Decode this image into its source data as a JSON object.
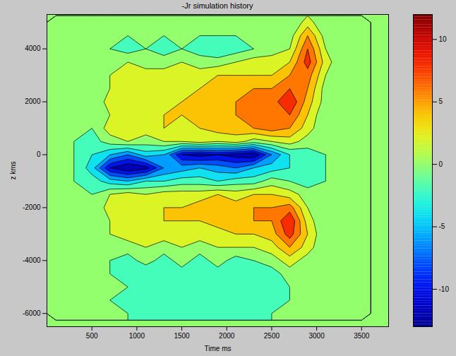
{
  "chart_data": {
    "type": "contour",
    "title": "-Jr simulation history",
    "x_label": "Time ms",
    "y_label": "z kms",
    "x": [
      100,
      300,
      500,
      700,
      900,
      1100,
      1300,
      1500,
      1700,
      1900,
      2100,
      2300,
      2500,
      2700,
      2900,
      3100,
      3300,
      3500
    ],
    "y": [
      5000,
      4500,
      4000,
      3500,
      3000,
      2500,
      2000,
      1500,
      1000,
      500,
      0,
      -500,
      -1000,
      -1500,
      -2000,
      -2500,
      -3000,
      -3500,
      -4000,
      -4500,
      -5000,
      -5500,
      -6000
    ],
    "values": [
      [
        0,
        0,
        0,
        0,
        0,
        0,
        0,
        0,
        0,
        0,
        0,
        0,
        0,
        0,
        3,
        0,
        0,
        0
      ],
      [
        0,
        0,
        0,
        0,
        0,
        0,
        0,
        0,
        0,
        0,
        0,
        0,
        0,
        1,
        6,
        1,
        0,
        0
      ],
      [
        0,
        0,
        0,
        0,
        -1,
        0,
        -1,
        0,
        -1,
        -2,
        -1,
        0,
        1,
        2,
        8,
        2,
        0,
        0
      ],
      [
        0,
        0,
        0,
        0,
        2,
        1,
        1,
        2,
        1,
        1,
        2,
        3,
        3,
        4,
        9,
        3,
        0,
        0
      ],
      [
        0,
        0,
        0,
        2,
        3,
        3,
        3,
        3,
        3,
        4,
        4,
        4,
        4,
        6,
        7,
        2,
        0,
        0
      ],
      [
        0,
        0,
        0,
        2,
        3,
        3,
        4,
        3,
        4,
        4,
        5,
        6,
        6,
        8,
        6,
        1,
        0,
        0
      ],
      [
        0,
        0,
        0,
        3,
        3,
        4,
        3,
        4,
        4,
        5,
        6,
        7,
        7,
        10,
        5,
        1,
        0,
        0
      ],
      [
        0,
        0,
        0,
        2,
        4,
        3,
        4,
        4,
        5,
        5,
        6,
        6,
        7,
        8,
        4,
        0,
        0,
        0
      ],
      [
        0,
        0,
        0,
        3,
        3,
        3,
        4,
        3,
        4,
        5,
        5,
        6,
        7,
        6,
        3,
        0,
        0,
        0
      ],
      [
        0,
        0,
        -1,
        1,
        2,
        1,
        2,
        2,
        3,
        2,
        3,
        1,
        2,
        3,
        1,
        0,
        0,
        0
      ],
      [
        0,
        0,
        -2,
        -4,
        -6,
        -3,
        -4,
        -10,
        -11,
        -10,
        -11,
        -12,
        -6,
        -2,
        -1,
        0,
        0,
        0
      ],
      [
        0,
        0,
        -3,
        -10,
        -12,
        -11,
        -6,
        -5,
        -4,
        -5,
        -6,
        -4,
        -3,
        -2,
        -1,
        0,
        0,
        0
      ],
      [
        0,
        0,
        -1,
        -3,
        -4,
        -2,
        -2,
        -1,
        -1,
        -2,
        -1,
        -1,
        1,
        0,
        -1,
        0,
        0,
        0
      ],
      [
        0,
        0,
        0,
        2,
        3,
        2,
        3,
        3,
        3,
        4,
        3,
        4,
        4,
        3,
        1,
        0,
        0,
        0
      ],
      [
        0,
        0,
        0,
        3,
        4,
        3,
        4,
        4,
        5,
        5,
        5,
        6,
        6,
        7,
        2,
        0,
        0,
        0
      ],
      [
        0,
        0,
        0,
        2,
        3,
        3,
        4,
        4,
        4,
        5,
        5,
        6,
        6,
        10,
        3,
        0,
        0,
        0
      ],
      [
        0,
        0,
        0,
        2,
        3,
        2,
        3,
        3,
        3,
        3,
        4,
        4,
        5,
        9,
        4,
        0,
        0,
        0
      ],
      [
        0,
        0,
        0,
        1,
        1,
        2,
        1,
        2,
        1,
        2,
        2,
        2,
        3,
        6,
        3,
        0,
        0,
        0
      ],
      [
        0,
        0,
        0,
        0,
        -1,
        1,
        -1,
        1,
        -1,
        1,
        -1,
        0,
        1,
        3,
        1,
        0,
        0,
        0
      ],
      [
        0,
        0,
        0,
        0,
        -1,
        -2,
        -1,
        -1,
        -2,
        -1,
        -1,
        -2,
        -1,
        1,
        0,
        0,
        0,
        0
      ],
      [
        0,
        0,
        0,
        0,
        0,
        -1,
        -2,
        -1,
        -2,
        -1,
        -2,
        -1,
        -1,
        0,
        0,
        0,
        0,
        0
      ],
      [
        0,
        0,
        0,
        0,
        -1,
        -1,
        -1,
        -2,
        -1,
        -2,
        -1,
        -1,
        -1,
        0,
        0,
        0,
        0,
        0
      ],
      [
        0,
        0,
        0,
        0,
        0,
        -1,
        0,
        -1,
        0,
        -1,
        0,
        -1,
        0,
        0,
        0,
        0,
        0,
        0
      ]
    ],
    "levels": [
      -12,
      -10,
      -8,
      -6,
      -4,
      -2,
      0,
      2,
      4,
      6,
      8,
      10
    ],
    "xlim": [
      0,
      3800
    ],
    "xticks": [
      500,
      1000,
      1500,
      2000,
      2500,
      3000,
      3500
    ],
    "ylim": [
      -6500,
      5300
    ],
    "yticks": [
      -6000,
      -4000,
      -2000,
      0,
      2000,
      4000
    ],
    "colorbar": {
      "range": [
        -13,
        12
      ],
      "ticks": [
        -10,
        -5,
        0,
        5,
        10
      ]
    }
  }
}
